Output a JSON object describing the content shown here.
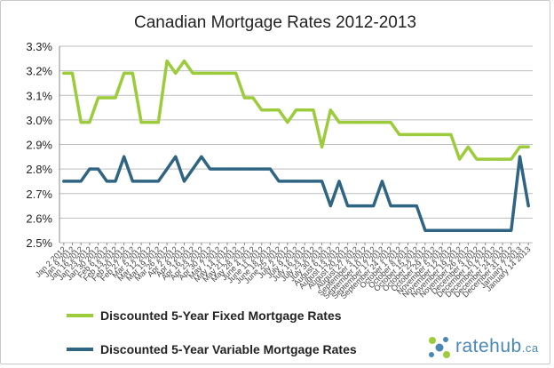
{
  "chart_data": {
    "type": "line",
    "title": "Canadian Mortgage Rates 2012-2013",
    "ylim": [
      2.5,
      3.3
    ],
    "yticks": [
      "3.3%",
      "3.2%",
      "3.1%",
      "3.0%",
      "2.9%",
      "2.8%",
      "2.7%",
      "2.6%",
      "2.5%"
    ],
    "ytick_values": [
      3.3,
      3.2,
      3.1,
      3.0,
      2.9,
      2.8,
      2.7,
      2.6,
      2.5
    ],
    "grid": true,
    "legend_position": "bottom-left",
    "categories": [
      "Jan 2 2012",
      "Jan 9 2012",
      "Jan 16 2012",
      "Jan 23 2012",
      "Jan 30 2012",
      "Feb 6 2012",
      "Feb 13 2012",
      "Feb 20 2012",
      "Feb 27 2012",
      "Mar 5 2012",
      "Mar 12 2012",
      "Mar 19 2012",
      "Mar 26 2012",
      "Apr 2 2012",
      "Apr 9 2012",
      "Apr 16 2012",
      "Apr 23 2012",
      "Apr 30 2012",
      "May 7 2012",
      "May 14 2012",
      "May 21 2012",
      "May 28 2012",
      "June 4 2012",
      "June 11 2012",
      "June 18 2012",
      "June 25 2012",
      "July 2 2012",
      "July 9 2012",
      "July 16 2012",
      "July 23 2012",
      "July 30 2012",
      "August 6 2012",
      "August 13 2012",
      "August 20 2012",
      "August 27 2012",
      "September 3 2012",
      "September 10 2012",
      "September 17 2012",
      "September 24 2012",
      "October 1 2012",
      "October 8 2012",
      "October 15 2012",
      "October 22 2012",
      "October 29 2012",
      "November 5 2012",
      "November 12 2012",
      "November 19 2012",
      "November 26 2012",
      "December 3 2012",
      "December 10 2012",
      "December 17 2012",
      "December 24 2012",
      "December 31 2012",
      "January 7 2013",
      "January 14 2013"
    ],
    "xtick_labels": [
      "Jan 2 2012",
      "Jan 9 2012",
      "Jan 16 2012",
      "Jan 23 2012",
      "Jan 30 2012",
      "Feb 6 2012",
      "Feb 13 2012",
      "Feb 20 2012",
      "Feb 27 2012",
      "Mar 5 2012",
      "Mar 12 2012",
      "Mar 19 2012",
      "Mar 26 2012",
      "Apr 2 2012",
      "Apr 9 2012",
      "Apr 16 2012",
      "Apr 23 2012",
      "Apr 30 2012",
      "May 7 2012",
      "May 14 2012",
      "May 21 2012",
      "May 28 2012",
      "June 4 2012",
      "June 11 2012",
      "June 18 2012",
      "June 25 2012",
      "July 2 2012",
      "July 9 2012",
      "July 16 2012",
      "July 23 2012",
      "July 30 2012",
      "August 6 2012",
      "August 13 2012",
      "August 20 2012",
      "August 27 2012",
      "September 3 2012",
      "September 10 2012",
      "September 17 2012",
      "September 24 2012",
      "October 1 2012",
      "October 8 2012",
      "October 15 2012",
      "October 22 2012",
      "October 29 2012",
      "November 5 2012",
      "November 12 2012",
      "November 19 2012",
      "November 26 2012",
      "December 3 2012",
      "December 10 2012",
      "December 17 2012",
      "December 24 2012",
      "December 31 2012",
      "January 7 2013",
      "January 14 2013"
    ],
    "series": [
      {
        "name": "Discounted 5-Year Fixed Mortgage Rates",
        "color": "#9ccb3b",
        "values": [
          3.19,
          3.19,
          2.99,
          2.99,
          3.09,
          3.09,
          3.09,
          3.19,
          3.19,
          2.99,
          2.99,
          2.99,
          3.24,
          3.19,
          3.24,
          3.19,
          3.19,
          3.19,
          3.19,
          3.19,
          3.19,
          3.09,
          3.09,
          3.04,
          3.04,
          3.04,
          2.99,
          3.04,
          3.04,
          3.04,
          2.89,
          3.04,
          2.99,
          2.99,
          2.99,
          2.99,
          2.99,
          2.99,
          2.99,
          2.94,
          2.94,
          2.94,
          2.94,
          2.94,
          2.94,
          2.94,
          2.84,
          2.89,
          2.84,
          2.84,
          2.84,
          2.84,
          2.84,
          2.89,
          2.89
        ]
      },
      {
        "name": "Discounted 5-Year Variable Mortgage Rates",
        "color": "#2f6482",
        "values": [
          2.75,
          2.75,
          2.75,
          2.8,
          2.8,
          2.75,
          2.75,
          2.85,
          2.75,
          2.75,
          2.75,
          2.75,
          2.8,
          2.85,
          2.75,
          2.8,
          2.85,
          2.8,
          2.8,
          2.8,
          2.8,
          2.8,
          2.8,
          2.8,
          2.8,
          2.75,
          2.75,
          2.75,
          2.75,
          2.75,
          2.75,
          2.65,
          2.75,
          2.65,
          2.65,
          2.65,
          2.65,
          2.75,
          2.65,
          2.65,
          2.65,
          2.65,
          2.55,
          2.55,
          2.55,
          2.55,
          2.55,
          2.55,
          2.55,
          2.55,
          2.55,
          2.55,
          2.55,
          2.85,
          2.65
        ]
      }
    ]
  },
  "brand": {
    "name": "ratehub",
    "tld": ".ca"
  }
}
